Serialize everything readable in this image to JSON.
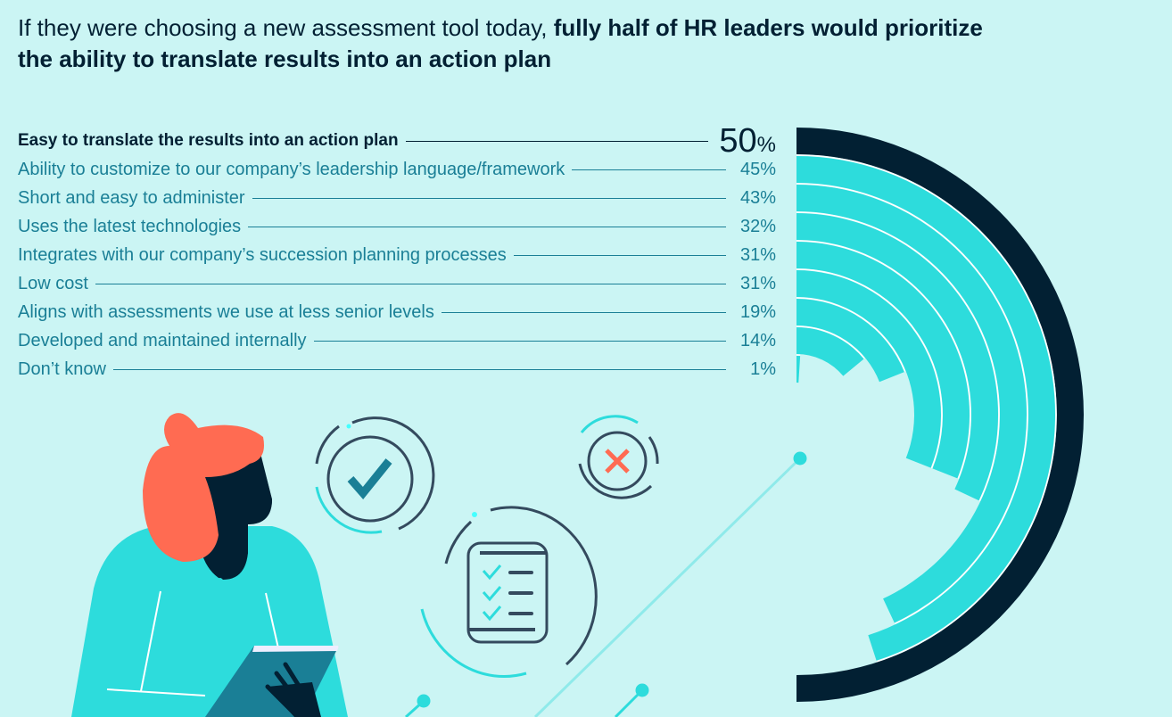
{
  "title": {
    "regular": "If they were choosing a new assessment tool today,",
    "bold": "fully half of HR leaders would prioritize the ability to translate results into an action plan"
  },
  "colors": {
    "background": "#cbf5f4",
    "highlight": "#022033",
    "bar": "#2ddcdc",
    "label": "#1a7f96",
    "accent": "#ff6b52"
  },
  "chart_data": {
    "type": "bar",
    "subtype": "radial",
    "title": "If they were choosing a new assessment tool today, fully half of HR leaders would prioritize the ability to translate results into an action plan",
    "categories": [
      "Easy to translate the results into an action plan",
      "Ability to customize to our company’s leadership language/framework",
      "Short and easy to administer",
      "Uses the latest technologies",
      "Integrates with our company’s succession planning processes",
      "Low cost",
      "Aligns with assessments we use at less senior levels",
      "Developed and maintained internally",
      "Don’t know"
    ],
    "values": [
      50,
      45,
      43,
      32,
      31,
      31,
      19,
      14,
      1
    ],
    "value_labels": [
      "50",
      "45%",
      "43%",
      "32%",
      "31%",
      "31%",
      "19%",
      "14%",
      "1%"
    ],
    "percent_sign": "%",
    "unit": "%",
    "range": [
      0,
      50
    ],
    "highlighted_index": 0
  }
}
